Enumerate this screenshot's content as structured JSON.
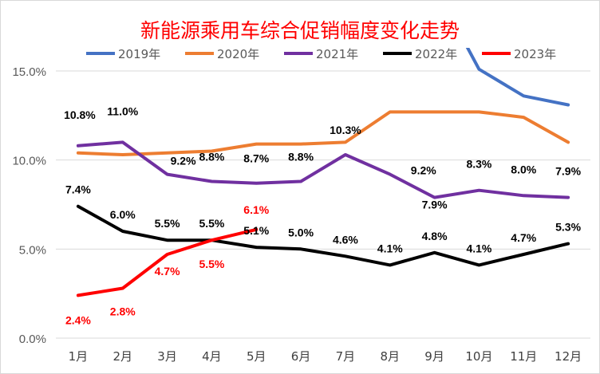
{
  "chart_data": {
    "type": "line",
    "title": "新能源乘用车综合促销幅度变化走势",
    "xlabel": "",
    "ylabel": "",
    "categories": [
      "1月",
      "2月",
      "3月",
      "4月",
      "5月",
      "6月",
      "7月",
      "8月",
      "9月",
      "10月",
      "11月",
      "12月"
    ],
    "ylim": [
      0,
      16.3
    ],
    "yticks": [
      "0.0%",
      "5.0%",
      "10.0%",
      "15.0%"
    ],
    "ytick_values": [
      0,
      5,
      10,
      15
    ],
    "grid": true,
    "legend_position": "top",
    "series": [
      {
        "name": "2019年",
        "color": "#4472C4",
        "values": [
          null,
          null,
          null,
          null,
          null,
          null,
          null,
          null,
          null,
          15.1,
          13.6,
          13.1
        ],
        "labels": []
      },
      {
        "name": "2020年",
        "color": "#ED7D31",
        "values": [
          10.4,
          10.3,
          10.4,
          10.5,
          10.9,
          10.9,
          11.0,
          12.7,
          12.7,
          12.7,
          12.4,
          11.0
        ],
        "labels": []
      },
      {
        "name": "2021年",
        "color": "#7030A0",
        "values": [
          10.8,
          11.0,
          9.2,
          8.8,
          8.7,
          8.8,
          10.3,
          9.2,
          7.9,
          8.3,
          8.0,
          7.9
        ],
        "labels": [
          "10.8%",
          "11.0%",
          "9.2%",
          "8.8%",
          "8.7%",
          "8.8%",
          "10.3%",
          "9.2%",
          "7.9%",
          "8.3%",
          "8.0%",
          "7.9%"
        ]
      },
      {
        "name": "2022年",
        "color": "#000000",
        "values": [
          7.4,
          6.0,
          5.5,
          5.5,
          5.1,
          5.0,
          4.6,
          4.1,
          4.8,
          4.1,
          4.7,
          5.3
        ],
        "labels": [
          "7.4%",
          "6.0%",
          "5.5%",
          "5.5%",
          "5.1%",
          "5.0%",
          "4.6%",
          "4.1%",
          "4.8%",
          "4.1%",
          "4.7%",
          "5.3%"
        ]
      },
      {
        "name": "2023年",
        "color": "#FF0000",
        "values": [
          2.4,
          2.8,
          4.7,
          5.5,
          6.1,
          null,
          null,
          null,
          null,
          null,
          null,
          null
        ],
        "labels": [
          "2.4%",
          "2.8%",
          "4.7%",
          "5.5%",
          "6.1%"
        ]
      }
    ]
  }
}
